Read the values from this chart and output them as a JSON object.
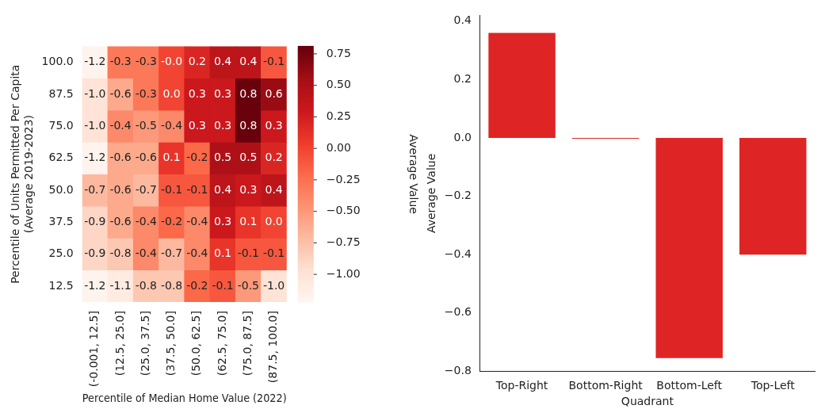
{
  "chart_data": [
    {
      "type": "heatmap",
      "xlabel": "Percentile of Median Home Value (2022)",
      "ylabel": "Percentile of Units Permitted Per Capita\n(Average 2019-2023)",
      "clabel": "Average Value",
      "categories": [
        "(-0.001, 12.5]",
        "(12.5, 25.0]",
        "(25.0, 37.5]",
        "(37.5, 50.0]",
        "(50.0, 62.5]",
        "(62.5, 75.0]",
        "(75.0, 87.5]",
        "(87.5, 100.0]"
      ],
      "y_categories": [
        "100.0",
        "87.5",
        "75.0",
        "62.5",
        "50.0",
        "37.5",
        "25.0",
        "12.5"
      ],
      "cells": [
        [
          -1.2,
          -0.3,
          -0.3,
          0.0,
          0.2,
          0.4,
          0.4,
          -0.1
        ],
        [
          -1.0,
          -0.6,
          -0.3,
          0.0,
          0.3,
          0.3,
          0.8,
          0.6
        ],
        [
          -1.0,
          -0.4,
          -0.5,
          -0.4,
          0.3,
          0.3,
          0.8,
          0.3
        ],
        [
          -1.2,
          -0.6,
          -0.6,
          0.1,
          -0.2,
          0.5,
          0.5,
          0.2
        ],
        [
          -0.7,
          -0.6,
          -0.7,
          -0.1,
          -0.1,
          0.4,
          0.3,
          0.4
        ],
        [
          -0.9,
          -0.6,
          -0.4,
          -0.2,
          -0.4,
          0.3,
          0.1,
          0.0
        ],
        [
          -0.9,
          -0.8,
          -0.4,
          -0.7,
          -0.4,
          0.1,
          -0.1,
          -0.1
        ],
        [
          -1.2,
          -1.1,
          -0.8,
          -0.8,
          -0.2,
          -0.1,
          -0.5,
          -1.0
        ]
      ],
      "cell_labels": [
        [
          "-1.2",
          "-0.3",
          "-0.3",
          "-0.0",
          "0.2",
          "0.4",
          "0.4",
          "-0.1"
        ],
        [
          "-1.0",
          "-0.6",
          "-0.3",
          "0.0",
          "0.3",
          "0.3",
          "0.8",
          "0.6"
        ],
        [
          "-1.0",
          "-0.4",
          "-0.5",
          "-0.4",
          "0.3",
          "0.3",
          "0.8",
          "0.3"
        ],
        [
          "-1.2",
          "-0.6",
          "-0.6",
          "0.1",
          "-0.2",
          "0.5",
          "0.5",
          "0.2"
        ],
        [
          "-0.7",
          "-0.6",
          "-0.7",
          "-0.1",
          "-0.1",
          "0.4",
          "0.3",
          "0.4"
        ],
        [
          "-0.9",
          "-0.6",
          "-0.4",
          "-0.2",
          "-0.4",
          "0.3",
          "0.1",
          "0.0"
        ],
        [
          "-0.9",
          "-0.8",
          "-0.4",
          "-0.7",
          "-0.4",
          "0.1",
          "-0.1",
          "-0.1"
        ],
        [
          "-1.2",
          "-1.1",
          "-0.8",
          "-0.8",
          "-0.2",
          "-0.1",
          "-0.5",
          "-1.0"
        ]
      ],
      "clim": [
        -1.22,
        0.81
      ],
      "cticks": [
        {
          "value": -1.0,
          "label": "−1.00"
        },
        {
          "value": -0.75,
          "label": "−0.75"
        },
        {
          "value": -0.5,
          "label": "−0.50"
        },
        {
          "value": -0.25,
          "label": "−0.25"
        },
        {
          "value": 0,
          "label": "0.00"
        },
        {
          "value": 0.25,
          "label": "0.25"
        },
        {
          "value": 0.5,
          "label": "0.50"
        },
        {
          "value": 0.75,
          "label": "0.75"
        }
      ]
    },
    {
      "type": "bar",
      "xlabel": "Quadrant",
      "ylabel": "Average Value",
      "categories": [
        "Top-Right",
        "Bottom-Right",
        "Bottom-Left",
        "Top-Left"
      ],
      "values": [
        0.36,
        -0.003,
        -0.755,
        -0.4
      ],
      "color": "#de2424",
      "ylim": [
        -0.8,
        0.42
      ],
      "yticks": [
        {
          "value": -0.8,
          "label": "−0.8"
        },
        {
          "value": -0.6,
          "label": "−0.6"
        },
        {
          "value": -0.4,
          "label": "−0.4"
        },
        {
          "value": -0.2,
          "label": "−0.2"
        },
        {
          "value": 0,
          "label": "0.0"
        },
        {
          "value": 0.2,
          "label": "0.2"
        },
        {
          "value": 0.4,
          "label": "0.4"
        }
      ],
      "grid": false,
      "legend": false
    }
  ]
}
